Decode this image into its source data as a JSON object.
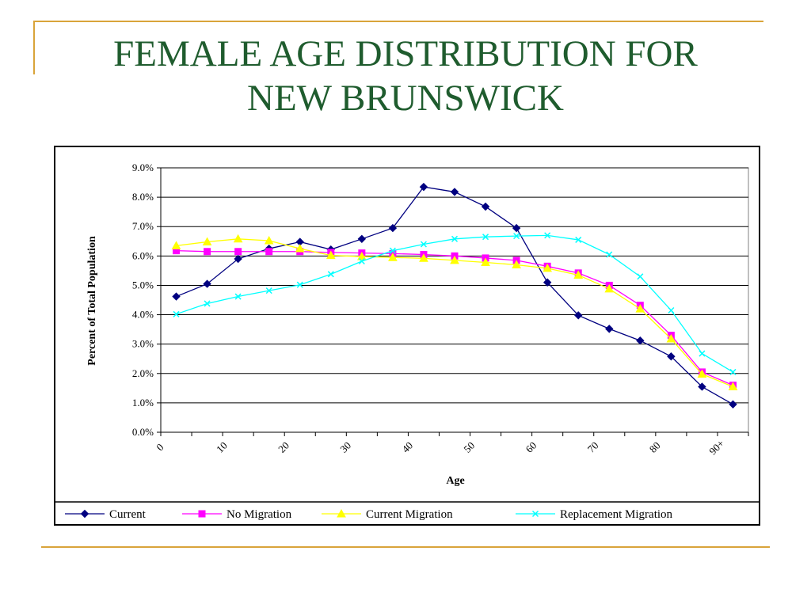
{
  "slide": {
    "title_line1": "FEMALE AGE DISTRIBUTION FOR",
    "title_line2": "NEW BRUNSWICK",
    "accent_color": "#d9a43a",
    "title_color": "#1f5c2e"
  },
  "chart_data": {
    "type": "line",
    "xlabel": "Age",
    "ylabel": "Percent of Total Population",
    "x_tick_labels": [
      "0",
      "10",
      "20",
      "30",
      "40",
      "50",
      "60",
      "70",
      "80",
      "90+"
    ],
    "y_tick_labels": [
      "0.0%",
      "1.0%",
      "2.0%",
      "3.0%",
      "4.0%",
      "5.0%",
      "6.0%",
      "7.0%",
      "8.0%",
      "9.0%"
    ],
    "ylim": [
      0,
      9
    ],
    "y_unit": "percent",
    "grid": "horizontal",
    "legend_position": "bottom",
    "categories": [
      "0-4",
      "5-9",
      "10-14",
      "15-19",
      "20-24",
      "25-29",
      "30-34",
      "35-39",
      "40-44",
      "45-49",
      "50-54",
      "55-59",
      "60-64",
      "65-69",
      "70-74",
      "75-79",
      "80-84",
      "85-89",
      "90+"
    ],
    "series": [
      {
        "name": "Current",
        "color": "#000080",
        "marker": "diamond",
        "values": [
          4.62,
          5.05,
          5.9,
          6.25,
          6.48,
          6.22,
          6.58,
          6.95,
          8.35,
          8.18,
          7.68,
          6.95,
          5.1,
          3.98,
          3.52,
          3.12,
          2.58,
          1.55,
          0.95
        ]
      },
      {
        "name": "No Migration",
        "color": "#ff00ff",
        "marker": "square",
        "values": [
          6.18,
          6.15,
          6.15,
          6.15,
          6.15,
          6.12,
          6.1,
          6.08,
          6.05,
          6.0,
          5.93,
          5.85,
          5.65,
          5.42,
          5.0,
          4.32,
          3.3,
          2.05,
          1.6
        ]
      },
      {
        "name": "Current Migration",
        "color": "#ffff00",
        "marker": "triangle",
        "values": [
          6.35,
          6.48,
          6.58,
          6.52,
          6.25,
          6.02,
          5.98,
          5.95,
          5.92,
          5.85,
          5.78,
          5.7,
          5.58,
          5.35,
          4.88,
          4.2,
          3.18,
          1.98,
          1.55
        ]
      },
      {
        "name": "Replacement Migration",
        "color": "#00ffff",
        "marker": "x",
        "values": [
          4.02,
          4.38,
          4.62,
          4.82,
          5.02,
          5.38,
          5.82,
          6.18,
          6.4,
          6.58,
          6.65,
          6.68,
          6.7,
          6.55,
          6.05,
          5.3,
          4.15,
          2.68,
          2.05
        ]
      }
    ]
  }
}
